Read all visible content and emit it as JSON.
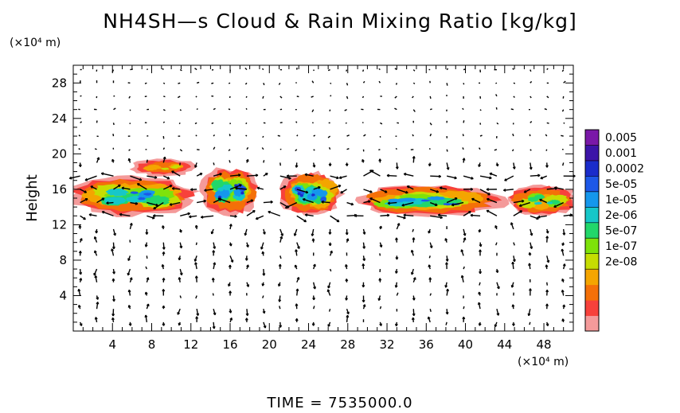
{
  "chart_data": {
    "type": "heatmap",
    "title": "NH4SH—s Cloud & Rain Mixing Ratio [kg/kg]",
    "ylabel": "Height",
    "xunit": "(×10⁴ m)",
    "yunit": "(×10⁴ m)",
    "footer": "TIME  =  7535000.0",
    "xlim": [
      0,
      51
    ],
    "ylim": [
      0,
      30
    ],
    "xticks": [
      "4",
      "8",
      "12",
      "16",
      "20",
      "24",
      "28",
      "32",
      "36",
      "40",
      "44",
      "48"
    ],
    "yticks": [
      "4",
      "8",
      "12",
      "16",
      "20",
      "24",
      "28"
    ],
    "colorbar": {
      "labels": [
        "0.005",
        "0.001",
        "0.0002",
        "5e-05",
        "1e-05",
        "2e-06",
        "5e-07",
        "1e-07",
        "2e-08"
      ],
      "colors": [
        "#f49a9a",
        "#f7413b",
        "#f47008",
        "#f4a500",
        "#c6dd02",
        "#7ee20a",
        "#22d76a",
        "#16c7c9",
        "#1597ec",
        "#1d58e8",
        "#1a2ccb",
        "#3c14a8",
        "#7a18a8"
      ]
    },
    "cloud_regions": [
      {
        "x": [
          -0.5,
          12.5
        ],
        "y": [
          13.0,
          17.5
        ],
        "peak_level": 9
      },
      {
        "x": [
          6.0,
          12.5
        ],
        "y": [
          17.5,
          19.5
        ],
        "peak_level": 4
      },
      {
        "x": [
          13.0,
          19.0
        ],
        "y": [
          13.0,
          18.5
        ],
        "peak_level": 10
      },
      {
        "x": [
          21.0,
          27.5
        ],
        "y": [
          13.0,
          18.0
        ],
        "peak_level": 10
      },
      {
        "x": [
          28.5,
          44.0
        ],
        "y": [
          13.0,
          16.5
        ],
        "peak_level": 9
      },
      {
        "x": [
          44.0,
          51.5
        ],
        "y": [
          13.0,
          16.5
        ],
        "peak_level": 7
      }
    ]
  }
}
